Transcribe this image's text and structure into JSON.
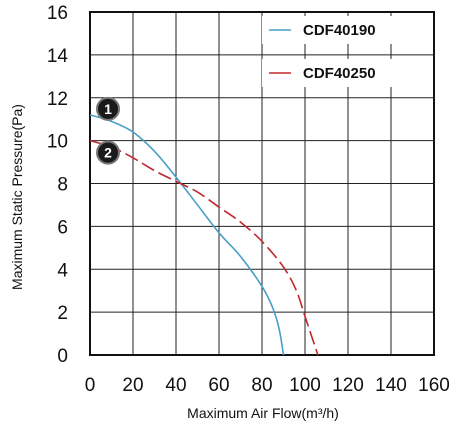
{
  "chart_data": {
    "type": "line",
    "title": "",
    "xlabel": "Maximum Air Flow(m³/h)",
    "ylabel": "Maximum Static Pressure(Pa)",
    "xlim": [
      0,
      160
    ],
    "ylim": [
      0,
      16
    ],
    "x_ticks": [
      "0",
      "20",
      "40",
      "60",
      "80",
      "100",
      "120",
      "140",
      "160"
    ],
    "y_ticks": [
      "0",
      "2",
      "4",
      "6",
      "8",
      "10",
      "12",
      "14",
      "16"
    ],
    "grid": true,
    "legend_placement": "top-right",
    "series": [
      {
        "name": "CDF40190",
        "color": "#4a9fc8",
        "dash": "solid",
        "marker_label": "1",
        "points": [
          [
            0,
            11.2
          ],
          [
            10,
            10.9
          ],
          [
            20,
            10.4
          ],
          [
            30,
            9.5
          ],
          [
            40,
            8.3
          ],
          [
            50,
            7.0
          ],
          [
            60,
            5.7
          ],
          [
            70,
            4.6
          ],
          [
            80,
            3.2
          ],
          [
            85,
            2.2
          ],
          [
            88,
            1.2
          ],
          [
            90,
            0
          ]
        ]
      },
      {
        "name": "CDF40250",
        "color": "#c0282d",
        "dash": "dashed",
        "marker_label": "2",
        "points": [
          [
            0,
            10.0
          ],
          [
            10,
            9.7
          ],
          [
            20,
            9.2
          ],
          [
            30,
            8.6
          ],
          [
            40,
            8.1
          ],
          [
            50,
            7.6
          ],
          [
            60,
            6.9
          ],
          [
            70,
            6.2
          ],
          [
            80,
            5.3
          ],
          [
            90,
            4.1
          ],
          [
            96,
            3.0
          ],
          [
            100,
            1.8
          ],
          [
            104,
            0.6
          ],
          [
            106,
            0
          ]
        ]
      }
    ]
  }
}
